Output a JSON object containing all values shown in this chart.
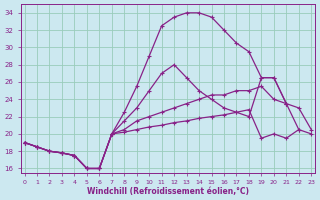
{
  "xlabel": "Windchill (Refroidissement éolien,°C)",
  "background_color": "#cce8f0",
  "grid_color": "#99ccbb",
  "line_color": "#882288",
  "x_ticks": [
    0,
    1,
    2,
    3,
    4,
    5,
    6,
    7,
    8,
    9,
    10,
    11,
    12,
    13,
    14,
    15,
    16,
    17,
    18,
    19,
    20,
    21,
    22,
    23
  ],
  "y_ticks": [
    16,
    18,
    20,
    22,
    24,
    26,
    28,
    30,
    32,
    34
  ],
  "xlim": [
    -0.3,
    23.3
  ],
  "ylim": [
    15.5,
    35.0
  ],
  "s1": [
    19.0,
    18.5,
    18.0,
    17.8,
    17.5,
    16.0,
    16.0,
    20.0,
    20.2,
    20.5,
    20.8,
    21.0,
    21.3,
    21.5,
    21.8,
    22.0,
    22.2,
    22.5,
    22.8,
    19.5,
    20.0,
    19.5,
    20.5,
    20.0
  ],
  "s2": [
    19.0,
    18.5,
    18.0,
    17.8,
    17.5,
    16.0,
    16.0,
    20.0,
    20.5,
    21.5,
    22.0,
    22.5,
    23.0,
    23.5,
    24.0,
    24.5,
    24.5,
    25.0,
    25.0,
    25.5,
    24.0,
    23.5,
    23.0,
    20.5
  ],
  "s3": [
    19.0,
    18.5,
    18.0,
    17.8,
    17.5,
    16.0,
    16.0,
    20.0,
    21.5,
    23.0,
    25.0,
    27.0,
    28.0,
    26.5,
    25.0,
    24.0,
    23.0,
    22.5,
    22.0,
    26.5,
    26.5,
    23.5,
    20.5,
    null
  ],
  "s4": [
    19.0,
    18.5,
    18.0,
    17.8,
    17.5,
    16.0,
    16.0,
    20.0,
    22.5,
    25.5,
    29.0,
    32.5,
    33.5,
    34.0,
    34.0,
    33.5,
    32.0,
    30.5,
    29.5,
    26.5,
    26.5,
    23.5,
    null,
    null
  ]
}
